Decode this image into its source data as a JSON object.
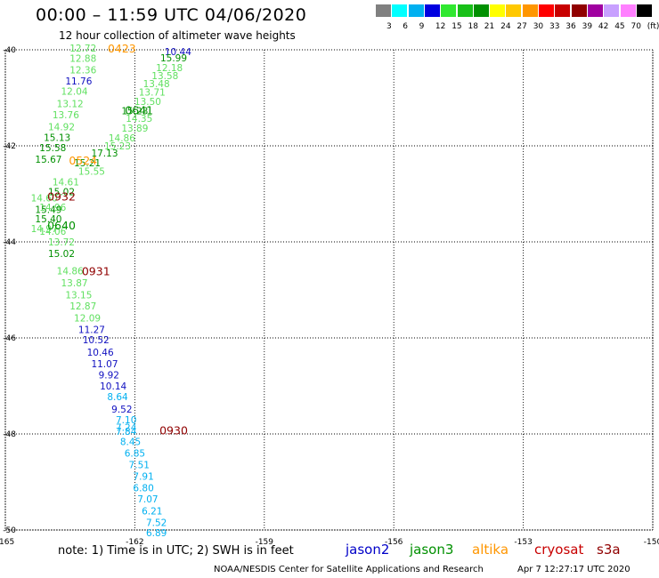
{
  "header": {
    "title": "00:00 – 11:59 UTC 04/06/2020",
    "subtitle": "12 hour collection of altimeter wave heights"
  },
  "legend": {
    "colors": [
      "#808080",
      "#00ffff",
      "#00b0f0",
      "#0000e0",
      "#30e830",
      "#18c018",
      "#009000",
      "#ffff00",
      "#ffc800",
      "#ff9600",
      "#ff0000",
      "#c80000",
      "#900000",
      "#a000a0",
      "#c8a0ff",
      "#ff80ff",
      "#000000"
    ],
    "labels": [
      "3",
      "6",
      "9",
      "12",
      "15",
      "18",
      "21",
      "24",
      "27",
      "30",
      "33",
      "36",
      "39",
      "42",
      "45",
      "70",
      "(ft)"
    ]
  },
  "map": {
    "lon_ticks": [
      "-165",
      "-162",
      "-159",
      "-156",
      "-153",
      "-150"
    ],
    "lat_ticks": [
      "-40",
      "-42",
      "-44",
      "-46",
      "-48",
      "-50"
    ]
  },
  "observations": [
    {
      "v": "12.72",
      "lon": -163.2,
      "lat": -39.96,
      "c": "#60e060"
    },
    {
      "v": "12.88",
      "lon": -163.2,
      "lat": -40.18,
      "c": "#60e060"
    },
    {
      "v": "12.36",
      "lon": -163.2,
      "lat": -40.42,
      "c": "#60e060"
    },
    {
      "v": "11.76",
      "lon": -163.3,
      "lat": -40.65,
      "c": "#1010c0"
    },
    {
      "v": "12.04",
      "lon": -163.4,
      "lat": -40.86,
      "c": "#60e060"
    },
    {
      "v": "13.12",
      "lon": -163.5,
      "lat": -41.12,
      "c": "#60e060"
    },
    {
      "v": "13.76",
      "lon": -163.6,
      "lat": -41.35,
      "c": "#60e060"
    },
    {
      "v": "14.92",
      "lon": -163.7,
      "lat": -41.6,
      "c": "#60e060"
    },
    {
      "v": "15.13",
      "lon": -163.8,
      "lat": -41.82,
      "c": "#009000"
    },
    {
      "v": "15.58",
      "lon": -163.9,
      "lat": -42.04,
      "c": "#009000"
    },
    {
      "v": "15.67",
      "lon": -164.0,
      "lat": -42.28,
      "c": "#009000"
    },
    {
      "v": "14.61",
      "lon": -163.6,
      "lat": -42.75,
      "c": "#60e060"
    },
    {
      "v": "15.02",
      "lon": -163.7,
      "lat": -42.95,
      "c": "#009000"
    },
    {
      "v": "14.60",
      "lon": -164.1,
      "lat": -43.08,
      "c": "#60e060"
    },
    {
      "v": "14.96",
      "lon": -163.9,
      "lat": -43.28,
      "c": "#60e060"
    },
    {
      "v": "15.49",
      "lon": -164.0,
      "lat": -43.32,
      "c": "#009000"
    },
    {
      "v": "15.40",
      "lon": -164.0,
      "lat": -43.52,
      "c": "#009000"
    },
    {
      "v": "14.97",
      "lon": -164.1,
      "lat": -43.72,
      "c": "#60e060"
    },
    {
      "v": "14.06",
      "lon": -163.9,
      "lat": -43.78,
      "c": "#60e060"
    },
    {
      "v": "13.72",
      "lon": -163.7,
      "lat": -44.0,
      "c": "#60e060"
    },
    {
      "v": "15.02",
      "lon": -163.7,
      "lat": -44.24,
      "c": "#009000"
    },
    {
      "v": "14.86",
      "lon": -163.5,
      "lat": -44.6,
      "c": "#60e060"
    },
    {
      "v": "13.87",
      "lon": -163.4,
      "lat": -44.85,
      "c": "#60e060"
    },
    {
      "v": "13.15",
      "lon": -163.3,
      "lat": -45.1,
      "c": "#60e060"
    },
    {
      "v": "12.87",
      "lon": -163.2,
      "lat": -45.33,
      "c": "#60e060"
    },
    {
      "v": "12.09",
      "lon": -163.1,
      "lat": -45.58,
      "c": "#60e060"
    },
    {
      "v": "11.27",
      "lon": -163.0,
      "lat": -45.82,
      "c": "#1010c0"
    },
    {
      "v": "10.52",
      "lon": -162.9,
      "lat": -46.04,
      "c": "#1010c0"
    },
    {
      "v": "10.46",
      "lon": -162.8,
      "lat": -46.3,
      "c": "#1010c0"
    },
    {
      "v": "11.07",
      "lon": -162.7,
      "lat": -46.54,
      "c": "#1010c0"
    },
    {
      "v": "9.92",
      "lon": -162.6,
      "lat": -46.77,
      "c": "#1010c0"
    },
    {
      "v": "10.14",
      "lon": -162.5,
      "lat": -47.0,
      "c": "#1010c0"
    },
    {
      "v": "8.64",
      "lon": -162.4,
      "lat": -47.22,
      "c": "#00b0f0"
    },
    {
      "v": "9.52",
      "lon": -162.3,
      "lat": -47.48,
      "c": "#1010c0"
    },
    {
      "v": "7.10",
      "lon": -162.2,
      "lat": -47.7,
      "c": "#00b0f0"
    },
    {
      "v": "7.24",
      "lon": -162.2,
      "lat": -47.86,
      "c": "#00b0f0"
    },
    {
      "v": "7.84",
      "lon": -162.2,
      "lat": -47.94,
      "c": "#00b0f0"
    },
    {
      "v": "8.45",
      "lon": -162.1,
      "lat": -48.16,
      "c": "#00b0f0"
    },
    {
      "v": "6.85",
      "lon": -162.0,
      "lat": -48.4,
      "c": "#00b0f0"
    },
    {
      "v": "7.51",
      "lon": -161.9,
      "lat": -48.64,
      "c": "#00b0f0"
    },
    {
      "v": "7.91",
      "lon": -161.8,
      "lat": -48.88,
      "c": "#00b0f0"
    },
    {
      "v": "6.80",
      "lon": -161.8,
      "lat": -49.12,
      "c": "#00b0f0"
    },
    {
      "v": "7.07",
      "lon": -161.7,
      "lat": -49.35,
      "c": "#00b0f0"
    },
    {
      "v": "6.21",
      "lon": -161.6,
      "lat": -49.6,
      "c": "#00b0f0"
    },
    {
      "v": "7.52",
      "lon": -161.5,
      "lat": -49.84,
      "c": "#00b0f0"
    },
    {
      "v": "6.89",
      "lon": -161.5,
      "lat": -50.06,
      "c": "#00b0f0"
    },
    {
      "v": "10.44",
      "lon": -161.0,
      "lat": -40.04,
      "c": "#1010c0"
    },
    {
      "v": "15.99",
      "lon": -161.1,
      "lat": -40.17,
      "c": "#009000"
    },
    {
      "v": "12.18",
      "lon": -161.2,
      "lat": -40.37,
      "c": "#60e060"
    },
    {
      "v": "13.58",
      "lon": -161.3,
      "lat": -40.54,
      "c": "#60e060"
    },
    {
      "v": "13.48",
      "lon": -161.5,
      "lat": -40.7,
      "c": "#60e060"
    },
    {
      "v": "13.71",
      "lon": -161.6,
      "lat": -40.88,
      "c": "#60e060"
    },
    {
      "v": "13.50",
      "lon": -161.7,
      "lat": -41.07,
      "c": "#60e060"
    },
    {
      "v": "15.23",
      "lon": -162.0,
      "lat": -41.27,
      "c": "#009000"
    },
    {
      "v": "14.35",
      "lon": -161.9,
      "lat": -41.43,
      "c": "#60e060"
    },
    {
      "v": "13.89",
      "lon": -162.0,
      "lat": -41.63,
      "c": "#60e060"
    },
    {
      "v": "14.86",
      "lon": -162.3,
      "lat": -41.83,
      "c": "#60e060"
    },
    {
      "v": "15.23",
      "lon": -162.4,
      "lat": -42.0,
      "c": "#60e060"
    },
    {
      "v": "17.13",
      "lon": -162.7,
      "lat": -42.15,
      "c": "#009000"
    },
    {
      "v": "15.21",
      "lon": -163.1,
      "lat": -42.35,
      "c": "#009000"
    },
    {
      "v": "15.55",
      "lon": -163.0,
      "lat": -42.53,
      "c": "#60e060"
    }
  ],
  "passes": [
    {
      "label": "0423",
      "lon": -162.3,
      "lat": -39.96,
      "c": "#ff9600"
    },
    {
      "label": "0641",
      "lon": -161.9,
      "lat": -41.25,
      "c": "#009000"
    },
    {
      "label": "0524",
      "lon": -163.2,
      "lat": -42.3,
      "c": "#ff9600"
    },
    {
      "label": "0932",
      "lon": -163.7,
      "lat": -43.05,
      "c": "#900000"
    },
    {
      "label": "0640",
      "lon": -163.7,
      "lat": -43.65,
      "c": "#009000"
    },
    {
      "label": "0931",
      "lon": -162.9,
      "lat": -44.6,
      "c": "#900000"
    },
    {
      "label": "0930",
      "lon": -161.1,
      "lat": -47.92,
      "c": "#900000"
    }
  ],
  "footer": {
    "note": "note:  1) Time is in UTC;  2) SWH is in feet",
    "satellites": [
      {
        "name": "jason2",
        "color": "#0000c8"
      },
      {
        "name": "jason3",
        "color": "#009000"
      },
      {
        "name": "altika",
        "color": "#ff9600"
      },
      {
        "name": "cryosat",
        "color": "#c80000"
      },
      {
        "name": "s3a",
        "color": "#900000"
      }
    ],
    "credit": "NOAA/NESDIS Center for Satellite Applications and Research",
    "timestamp": "Apr  7 12:27:17 UTC 2020"
  }
}
